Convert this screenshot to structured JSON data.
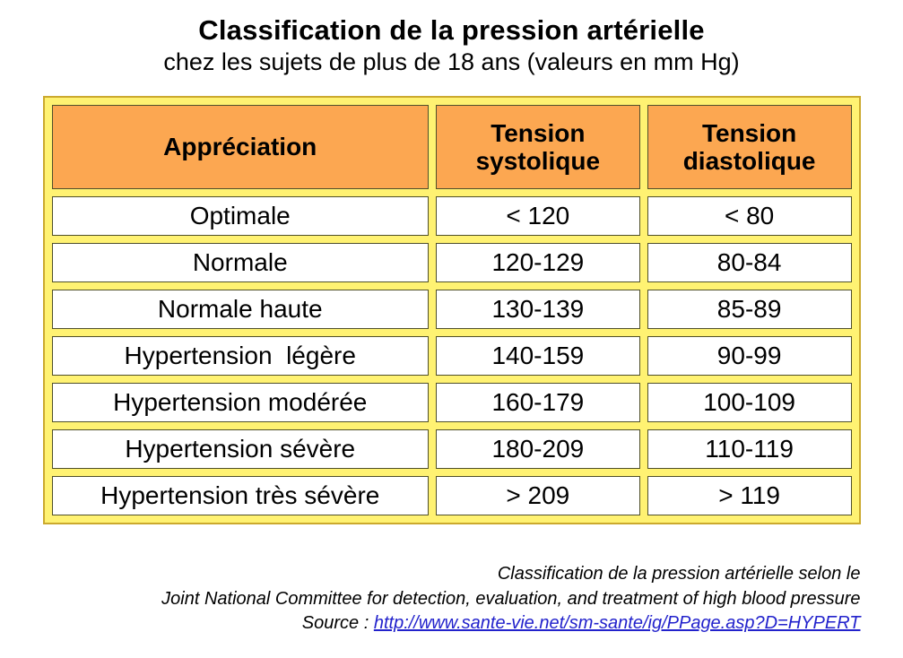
{
  "header": {
    "title": "Classification de la pression artérielle",
    "subtitle": "chez les sujets de plus de 18 ans (valeurs en mm Hg)"
  },
  "chart_data": {
    "type": "table",
    "title": "Classification de la pression artérielle",
    "subtitle": "chez les sujets de plus de 18 ans (valeurs en mm Hg)",
    "unit": "mm Hg",
    "columns": [
      "Appréciation",
      "Tension systolique",
      "Tension diastolique"
    ],
    "rows": [
      [
        "Optimale",
        "< 120",
        "< 80"
      ],
      [
        "Normale",
        "120-129",
        "80-84"
      ],
      [
        "Normale haute",
        "130-139",
        "85-89"
      ],
      [
        "Hypertension  légère",
        "140-159",
        "90-99"
      ],
      [
        "Hypertension modérée",
        "160-179",
        "100-109"
      ],
      [
        "Hypertension sévère",
        "180-209",
        "110-119"
      ],
      [
        "Hypertension très sévère",
        "> 209",
        "> 119"
      ]
    ]
  },
  "footer": {
    "line1": "Classification de la pression artérielle selon le",
    "line2": "Joint National Committee for detection, evaluation, and treatment of high blood pressure",
    "source_label": "Source : ",
    "source_url": "http://www.sante-vie.net/sm-sante/ig/PPage.asp?D=HYPERT"
  },
  "colors": {
    "header_cell_orange": "#FCA751",
    "table_gutter_yellow": "#FFF272",
    "table_outer_border_gold": "#CBA92E",
    "cell_border_dark": "#4F4F2A",
    "link_blue": "#2222CC",
    "text_black": "#000000",
    "background_white": "#FFFFFF"
  }
}
